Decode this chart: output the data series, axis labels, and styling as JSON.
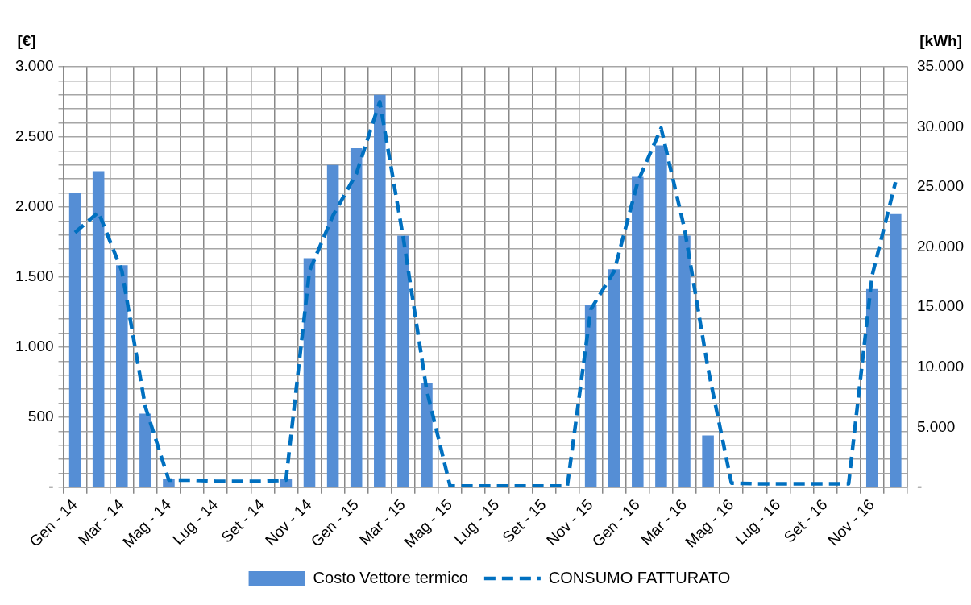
{
  "chart_data": {
    "type": "bar",
    "ylabel": "[€]",
    "y2label": "[kWh]",
    "categories": [
      "Gen - 14",
      null,
      "Mar - 14",
      null,
      "Mag - 14",
      null,
      "Lug - 14",
      null,
      "Set - 14",
      null,
      "Nov - 14",
      null,
      "Gen - 15",
      null,
      "Mar - 15",
      null,
      "Mag - 15",
      null,
      "Lug - 15",
      null,
      "Set - 15",
      null,
      "Nov - 15",
      null,
      "Gen - 16",
      null,
      "Mar - 16",
      null,
      "Mag - 16",
      null,
      "Lug - 16",
      null,
      "Set - 16",
      null,
      "Nov - 16",
      null
    ],
    "series": [
      {
        "name": "Costo Vettore termico",
        "color": "#558ed5",
        "values": [
          2100,
          2255,
          1585,
          525,
          60,
          0,
          0,
          0,
          0,
          60,
          1635,
          2300,
          2420,
          2800,
          1795,
          745,
          0,
          0,
          0,
          0,
          0,
          0,
          1300,
          1555,
          2215,
          2440,
          1795,
          370,
          0,
          0,
          0,
          0,
          0,
          0,
          1415,
          1950
        ]
      },
      {
        "name": "CONSUMO FATTURATO",
        "type": "line",
        "axis": "y2",
        "line_style": "dashed",
        "marker": "none",
        "color": "#0070c0",
        "values": [
          21200,
          22900,
          18000,
          6700,
          600,
          600,
          500,
          500,
          500,
          600,
          18000,
          22600,
          26100,
          32100,
          20800,
          8100,
          100,
          100,
          100,
          100,
          100,
          100,
          14800,
          18000,
          25400,
          29900,
          21500,
          9900,
          350,
          300,
          300,
          300,
          300,
          300,
          17600,
          25400
        ]
      }
    ],
    "ylim": [
      0,
      3000
    ],
    "yticks": [
      {
        "value": 0,
        "label": "-"
      },
      {
        "value": 100,
        "label": null
      },
      {
        "value": 200,
        "label": null
      },
      {
        "value": 300,
        "label": null
      },
      {
        "value": 400,
        "label": null
      },
      500,
      {
        "value": 600,
        "label": null
      },
      {
        "value": 700,
        "label": null
      },
      {
        "value": 800,
        "label": null
      },
      {
        "value": 900,
        "label": null
      },
      {
        "value": 1000,
        "label": "1.000"
      },
      {
        "value": 1100,
        "label": null
      },
      {
        "value": 1200,
        "label": null
      },
      {
        "value": 1300,
        "label": null
      },
      {
        "value": 1400,
        "label": null
      },
      {
        "value": 1500,
        "label": "1.500"
      },
      {
        "value": 1600,
        "label": null
      },
      {
        "value": 1700,
        "label": null
      },
      {
        "value": 1800,
        "label": null
      },
      {
        "value": 1900,
        "label": null
      },
      {
        "value": 2000,
        "label": "2.000"
      },
      {
        "value": 2100,
        "label": null
      },
      {
        "value": 2200,
        "label": null
      },
      {
        "value": 2300,
        "label": null
      },
      {
        "value": 2400,
        "label": null
      },
      {
        "value": 2500,
        "label": "2.500"
      },
      {
        "value": 2600,
        "label": null
      },
      {
        "value": 2700,
        "label": null
      },
      {
        "value": 2800,
        "label": null
      },
      {
        "value": 2900,
        "label": null
      },
      {
        "value": 3000,
        "label": "3.000"
      }
    ],
    "y2lim": [
      0,
      35000
    ],
    "y2ticks": [
      {
        "value": 0,
        "label": "-"
      },
      {
        "value": 5000,
        "label": "5.000"
      },
      {
        "value": 10000,
        "label": "10.000"
      },
      {
        "value": 15000,
        "label": "15.000"
      },
      {
        "value": 20000,
        "label": "20.000"
      },
      {
        "value": 25000,
        "label": "25.000"
      },
      {
        "value": 30000,
        "label": "30.000"
      },
      {
        "value": 35000,
        "label": "35.000"
      }
    ],
    "grid": true,
    "legend": "bottom"
  }
}
